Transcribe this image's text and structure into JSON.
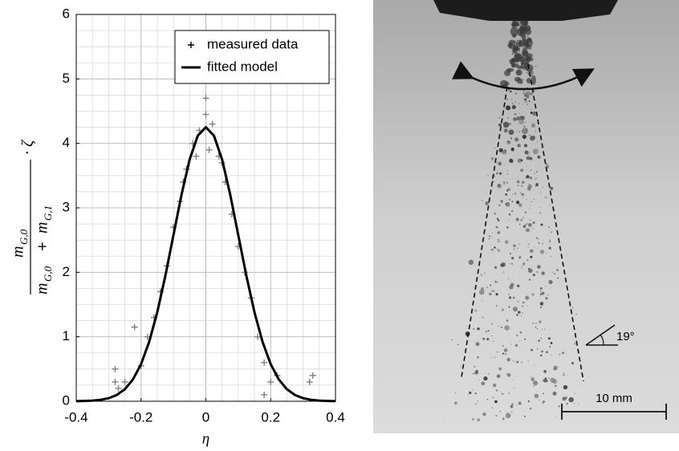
{
  "chart_data": {
    "type": "scatter_fit",
    "xlabel": "η",
    "ylabel": {
      "numerator": "m",
      "numerator_sub": "G,0",
      "den1": "m",
      "den1_sub": "G,0",
      "operator": "+",
      "den2": "m",
      "den2_sub": "G,1",
      "factor": "· ζ"
    },
    "xlim": [
      -0.4,
      0.4
    ],
    "ylim": [
      0,
      6
    ],
    "xticks": [
      -0.4,
      -0.2,
      0,
      0.2,
      0.4
    ],
    "yticks": [
      0,
      1,
      2,
      3,
      4,
      5,
      6
    ],
    "grid": true,
    "minor_grid": true,
    "legend": "upper right",
    "series": [
      {
        "name": "measured data",
        "color": "#808080",
        "x": [
          -0.28,
          -0.28,
          -0.27,
          -0.25,
          -0.22,
          -0.2,
          -0.18,
          -0.16,
          -0.14,
          -0.12,
          -0.1,
          -0.08,
          -0.07,
          -0.06,
          -0.04,
          -0.03,
          -0.02,
          0,
          0,
          0.01,
          0.02,
          0.04,
          0.05,
          0.06,
          0.08,
          0.1,
          0.12,
          0.14,
          0.16,
          0.18,
          0.18,
          0.2,
          0.22,
          0.32,
          0.33
        ],
        "values": [
          0.3,
          0.5,
          0.2,
          0.3,
          1.15,
          0.55,
          1.0,
          1.3,
          1.7,
          2.1,
          2.7,
          3.1,
          3.4,
          3.6,
          4.0,
          3.8,
          4.2,
          4.7,
          4.45,
          3.9,
          4.3,
          3.8,
          3.7,
          3.4,
          2.9,
          2.4,
          2.0,
          1.6,
          1.0,
          0.6,
          0.1,
          0.3,
          0.4,
          0.3,
          0.4
        ]
      },
      {
        "name": "fitted model",
        "color": "#000000",
        "x": [
          -0.4,
          -0.375,
          -0.35,
          -0.325,
          -0.3,
          -0.275,
          -0.25,
          -0.225,
          -0.2,
          -0.175,
          -0.15,
          -0.125,
          -0.1,
          -0.075,
          -0.05,
          -0.025,
          0,
          0.025,
          0.05,
          0.075,
          0.1,
          0.125,
          0.15,
          0.175,
          0.2,
          0.225,
          0.25,
          0.275,
          0.3,
          0.325,
          0.35,
          0.375,
          0.4
        ],
        "values": [
          0.001,
          0.004,
          0.009,
          0.022,
          0.047,
          0.097,
          0.187,
          0.338,
          0.575,
          0.92,
          1.38,
          1.946,
          2.578,
          3.208,
          3.751,
          4.119,
          4.25,
          4.119,
          3.751,
          3.208,
          2.578,
          1.946,
          1.38,
          0.92,
          0.575,
          0.338,
          0.187,
          0.097,
          0.047,
          0.022,
          0.009,
          0.004,
          0.001
        ]
      }
    ]
  },
  "photo": {
    "angle_label": "19°",
    "scale_label": "10 mm"
  }
}
